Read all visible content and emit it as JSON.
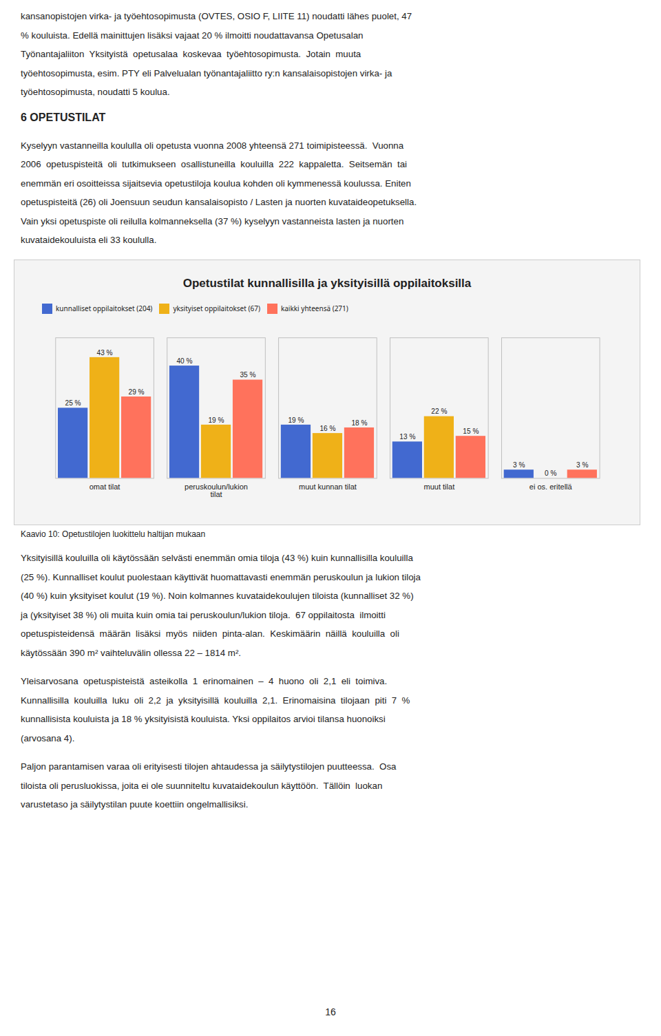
{
  "chart_data": {
    "type": "bar",
    "title": "Opetustilat kunnallisilla ja yksityisillä oppilaitoksilla",
    "categories": [
      "omat tilat",
      "peruskoulun/lukion\ntilat",
      "muut kunnan tilat",
      "muut tilat",
      "ei os. eritellä"
    ],
    "series": [
      {
        "name": "kunnalliset oppilaitokset (204)",
        "values": [
          25,
          40,
          19,
          13,
          3
        ],
        "value_labels": [
          "25 %",
          "40 %",
          "19 %",
          "13 %",
          "3 %"
        ]
      },
      {
        "name": "yksityiset oppilaitokset (67)",
        "values": [
          43,
          19,
          16,
          22,
          0
        ],
        "value_labels": [
          "43 %",
          "19 %",
          "16 %",
          "22 %",
          "0 %"
        ]
      },
      {
        "name": "kaikki yhteensä (271)",
        "values": [
          29,
          35,
          18,
          15,
          3
        ],
        "value_labels": [
          "29 %",
          "35 %",
          "18 %",
          "15 %",
          "3 %"
        ]
      }
    ],
    "ylim": [
      0,
      50
    ],
    "data_labels": true,
    "tick_labels": "x",
    "legend": "top",
    "grid": false
  },
  "page_text": {
    "before": [
      [
        "kansanopistojen virka- ja työehtosopimusta (OVTES, OSIO F, LIITE 11) noudatti lähes puolet, 47",
        "% kouluista. Edellä mainittujen lisäksi vajaat 20 % ilmoitti noudattavansa Opetusalan",
        "Työnantajaliiton  Yksityistä  opetusalaa  koskevaa  työehtosopimusta.  Jotain  muuta",
        "työehtosopimusta, esim. PTY eli Palvelualan työnantajaliitto ry:n kansalaisopistojen virka- ja",
        "työehtosopimusta, noudatti 5 koulua."
      ]
    ],
    "heading": "6 OPETUSTILAT",
    "after_heading": [
      [
        "Kyselyyn vastanneilla koululla oli opetusta vuonna 2008 yhteensä 271 toimipisteessä.  Vuonna",
        "2006  opetuspisteitä  oli  tutkimukseen  osallistuneilla  kouluilla  222  kappaletta.  Seitsemän  tai",
        "enemmän eri osoitteissa sijaitsevia opetustiloja koulua kohden oli kymmenessä koulussa. Eniten",
        "opetuspisteitä (26) oli Joensuun seudun kansalaisopisto / Lasten ja nuorten kuvataideopetuksella.",
        "Vain yksi opetuspiste oli reilulla kolmanneksella (37 %) kyselyyn vastanneista lasten ja nuorten",
        "kuvataidekouluista eli 33 koululla."
      ]
    ],
    "caption": "Kaavio 10: Opetustilojen luokittelu haltijan mukaan",
    "after_chart": [
      [
        "Yksityisillä kouluilla oli käytössään selvästi enemmän omia tiloja (43 %) kuin kunnallisilla kouluilla",
        "(25 %). Kunnalliset koulut puolestaan käyttivät huomattavasti enemmän peruskoulun ja lukion tiloja",
        "(40 %) kuin yksityiset koulut (19 %). Noin kolmannes kuvataidekoulujen tiloista (kunnalliset 32 %)",
        "ja (yksityiset 38 %) oli muita kuin omia tai peruskoulun/lukion tiloja.  67 oppilaitosta  ilmoitti",
        "opetuspisteidensä  määrän  lisäksi  myös  niiden  pinta-alan.  Keskimäärin  näillä  kouluilla  oli",
        "käytössään 390 m² vaihteluvälin ollessa 22 – 1814 m²."
      ],
      [
        "Yleisarvosana  opetuspisteistä  asteikolla  1  erinomainen  –  4  huono  oli  2,1  eli  toimiva.",
        "Kunnallisilla  kouluilla  luku  oli  2,2  ja  yksityisillä  kouluilla  2,1.  Erinomaisina  tilojaan  piti  7  %",
        "kunnallisista kouluista ja 18 % yksityisistä kouluista. Yksi oppilaitos arvioi tilansa huonoiksi",
        "(arvosana 4)."
      ],
      [
        "Paljon parantamisen varaa oli erityisesti tilojen ahtaudessa ja säilytystilojen puutteessa.  Osa",
        "tiloista oli perusluokissa, joita ei ole suunniteltu kuvataidekoulun käyttöön.  Tällöin  luokan",
        "varustetaso ja säilytystilan puute koettiin ongelmallisiksi."
      ]
    ],
    "page_number": "16"
  }
}
